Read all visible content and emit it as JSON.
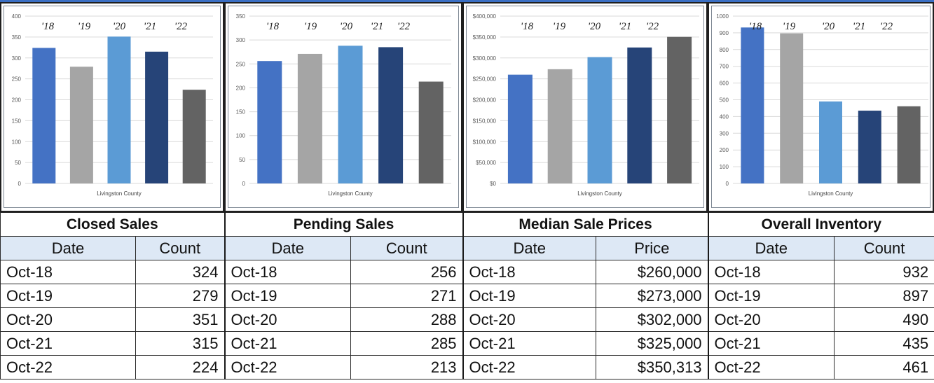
{
  "colors": {
    "bars": [
      "#4472c4",
      "#a5a5a5",
      "#5b9bd5",
      "#264478",
      "#636363"
    ],
    "grid": "#d9d9d9",
    "header_bg": "#dde8f5"
  },
  "chart_data": [
    {
      "type": "bar",
      "categories": [
        "'18",
        "'19",
        "'20",
        "'21",
        "'22"
      ],
      "values": [
        324,
        279,
        351,
        315,
        224
      ],
      "xlabel": "Livingston County",
      "ylabel": "",
      "ylim": [
        0,
        400
      ],
      "yticks": [
        0,
        50,
        100,
        150,
        200,
        250,
        300,
        350,
        400
      ],
      "ytick_labels": [
        "0",
        "50",
        "100",
        "150",
        "200",
        "250",
        "300",
        "350",
        "400"
      ],
      "grid": true,
      "legend": "top (category labels above bars)"
    },
    {
      "type": "bar",
      "categories": [
        "'18",
        "'19",
        "'20",
        "'21",
        "'22"
      ],
      "values": [
        256,
        271,
        288,
        285,
        213
      ],
      "xlabel": "Livingston County",
      "ylabel": "",
      "ylim": [
        0,
        350
      ],
      "yticks": [
        0,
        50,
        100,
        150,
        200,
        250,
        300,
        350
      ],
      "ytick_labels": [
        "0",
        "50",
        "100",
        "150",
        "200",
        "250",
        "300",
        "350"
      ],
      "grid": true,
      "legend": "top (category labels above bars)"
    },
    {
      "type": "bar",
      "categories": [
        "'18",
        "'19",
        "'20",
        "'21",
        "'22"
      ],
      "values": [
        260000,
        273000,
        302000,
        325000,
        350313
      ],
      "xlabel": "Livingston County",
      "ylabel": "",
      "ylim": [
        0,
        400000
      ],
      "yticks": [
        0,
        50000,
        100000,
        150000,
        200000,
        250000,
        300000,
        350000,
        400000
      ],
      "ytick_labels": [
        "$0",
        "$50,000",
        "$100,000",
        "$150,000",
        "$200,000",
        "$250,000",
        "$300,000",
        "$350,000",
        "$400,000"
      ],
      "grid": true,
      "legend": "top (category labels above bars)"
    },
    {
      "type": "bar",
      "categories": [
        "'18",
        "'19",
        "'20",
        "'21",
        "'22"
      ],
      "values": [
        932,
        897,
        490,
        435,
        461
      ],
      "xlabel": "Livingston County",
      "ylabel": "",
      "ylim": [
        0,
        1000
      ],
      "yticks": [
        0,
        100,
        200,
        300,
        400,
        500,
        600,
        700,
        800,
        900,
        1000
      ],
      "ytick_labels": [
        "0",
        "100",
        "200",
        "300",
        "400",
        "500",
        "600",
        "700",
        "800",
        "900",
        "1000"
      ],
      "grid": true,
      "legend": "top (category labels above bars)"
    }
  ],
  "tables": [
    {
      "title": "Closed Sales",
      "col1": "Date",
      "col2": "Count",
      "rows": [
        {
          "date": "Oct-18",
          "value": "324"
        },
        {
          "date": "Oct-19",
          "value": "279"
        },
        {
          "date": "Oct-20",
          "value": "351"
        },
        {
          "date": "Oct-21",
          "value": "315"
        },
        {
          "date": "Oct-22",
          "value": "224"
        }
      ]
    },
    {
      "title": "Pending Sales",
      "col1": "Date",
      "col2": "Count",
      "rows": [
        {
          "date": "Oct-18",
          "value": "256"
        },
        {
          "date": "Oct-19",
          "value": "271"
        },
        {
          "date": "Oct-20",
          "value": "288"
        },
        {
          "date": "Oct-21",
          "value": "285"
        },
        {
          "date": "Oct-22",
          "value": "213"
        }
      ]
    },
    {
      "title": "Median Sale Prices",
      "col1": "Date",
      "col2": "Price",
      "rows": [
        {
          "date": "Oct-18",
          "value": "$260,000"
        },
        {
          "date": "Oct-19",
          "value": "$273,000"
        },
        {
          "date": "Oct-20",
          "value": "$302,000"
        },
        {
          "date": "Oct-21",
          "value": "$325,000"
        },
        {
          "date": "Oct-22",
          "value": "$350,313"
        }
      ]
    },
    {
      "title": "Overall Inventory",
      "col1": "Date",
      "col2": "Count",
      "rows": [
        {
          "date": "Oct-18",
          "value": "932"
        },
        {
          "date": "Oct-19",
          "value": "897"
        },
        {
          "date": "Oct-20",
          "value": "490"
        },
        {
          "date": "Oct-21",
          "value": "435"
        },
        {
          "date": "Oct-22",
          "value": "461"
        }
      ]
    }
  ]
}
